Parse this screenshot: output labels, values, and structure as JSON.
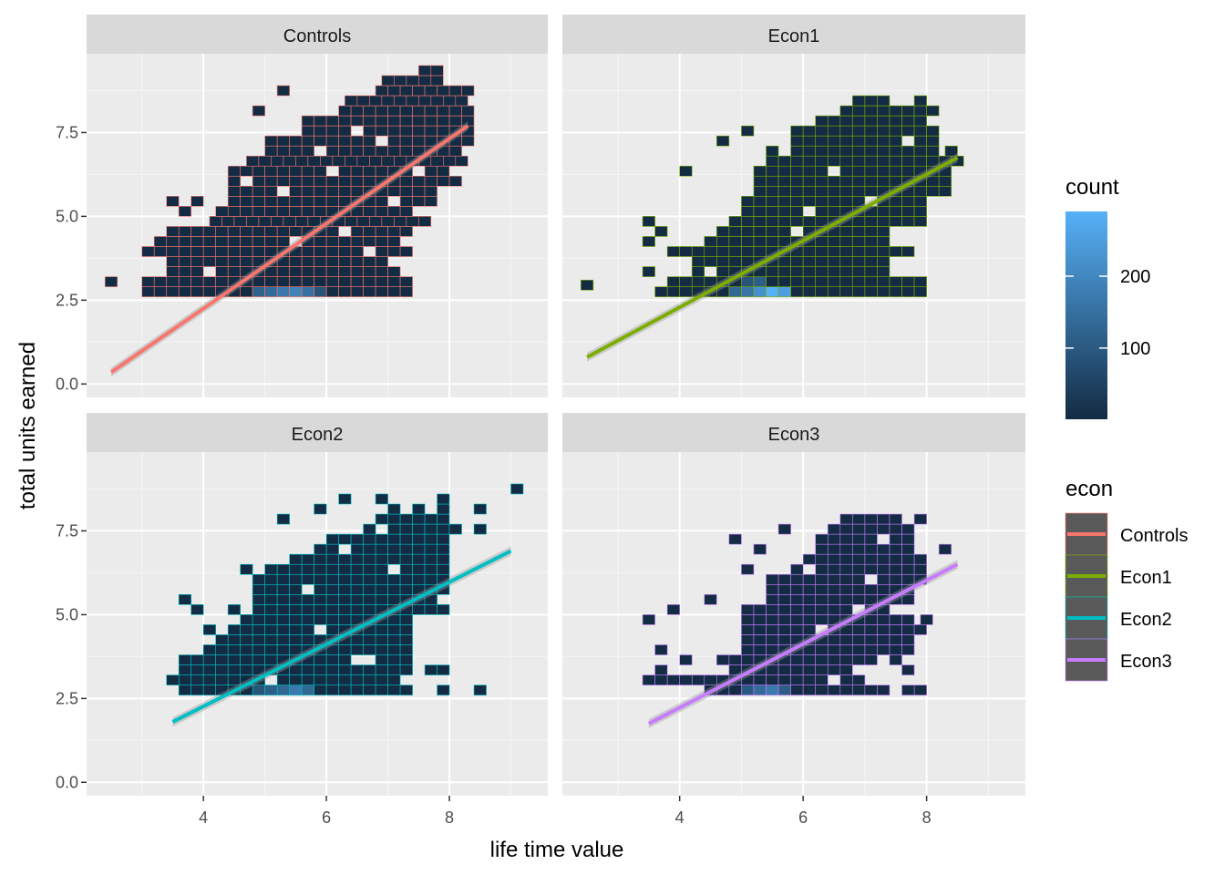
{
  "chart_data": {
    "type": "heatmap",
    "subtype": "faceted 2D-bin heatmap with linear fit lines",
    "xlabel": "life time value",
    "ylabel": "total units earned",
    "xlim": [
      2.1,
      9.6
    ],
    "ylim": [
      -0.4,
      9.85
    ],
    "x_ticks": [
      4,
      6,
      8
    ],
    "x_tick_labels": [
      "4",
      "6",
      "8"
    ],
    "y_ticks": [
      0,
      2.5,
      5,
      7.5
    ],
    "y_tick_labels": [
      "0.0",
      "2.5",
      "5.0",
      "7.5"
    ],
    "x_minor_ticks": [
      3,
      5,
      7,
      9
    ],
    "y_minor_ticks": [
      1.25,
      3.75,
      6.25,
      8.75
    ],
    "grid": true,
    "bin_width_x": 0.2,
    "bin_width_y": 0.3,
    "fill_legend": {
      "title": "count",
      "range": [
        1,
        290
      ],
      "breaks": [
        100,
        200
      ],
      "break_labels": [
        "100",
        "200"
      ],
      "low_color": "#132B43",
      "high_color": "#56B1F7"
    },
    "color_legend": {
      "title": "econ",
      "entries": [
        {
          "label": "Controls",
          "color": "#F8766D"
        },
        {
          "label": "Econ1",
          "color": "#7CAE00"
        },
        {
          "label": "Econ2",
          "color": "#00BFC4"
        },
        {
          "label": "Econ3",
          "color": "#C77CFF"
        }
      ]
    },
    "panels": [
      {
        "label": "Controls",
        "fit": {
          "x": [
            2.5,
            8.3
          ],
          "y": [
            0.35,
            7.7
          ]
        },
        "bin_x_range": [
          2.4,
          8.4
        ],
        "rows": [
          {
            "y": 2.75,
            "x0": 3.1,
            "x1": 7.4
          },
          {
            "y": 3.05,
            "x0": 3.1,
            "x1": 7.4
          },
          {
            "y": 3.35,
            "x0": 3.5,
            "x1": 7.1
          },
          {
            "y": 3.65,
            "x0": 3.5,
            "x1": 7.0
          },
          {
            "y": 3.95,
            "x0": 3.1,
            "x1": 7.4
          },
          {
            "y": 4.25,
            "x0": 3.5,
            "x1": 7.1
          },
          {
            "y": 4.55,
            "x0": 3.5,
            "x1": 7.4
          },
          {
            "y": 4.85,
            "x0": 4.2,
            "x1": 7.7
          },
          {
            "y": 5.15,
            "x0": 4.5,
            "x1": 7.4
          },
          {
            "y": 5.45,
            "x0": 4.5,
            "x1": 7.7
          },
          {
            "y": 5.75,
            "x0": 4.5,
            "x1": 7.7
          },
          {
            "y": 6.05,
            "x0": 4.5,
            "x1": 8.1
          },
          {
            "y": 6.35,
            "x0": 4.5,
            "x1": 8.0
          },
          {
            "y": 6.65,
            "x0": 4.8,
            "x1": 8.2
          },
          {
            "y": 6.95,
            "x0": 5.1,
            "x1": 8.2
          },
          {
            "y": 7.25,
            "x0": 5.1,
            "x1": 8.3
          },
          {
            "y": 7.55,
            "x0": 5.7,
            "x1": 8.3
          },
          {
            "y": 7.85,
            "x0": 5.7,
            "x1": 8.3
          },
          {
            "y": 8.15,
            "x0": 6.3,
            "x1": 8.3
          },
          {
            "y": 8.45,
            "x0": 6.4,
            "x1": 8.3
          },
          {
            "y": 8.75,
            "x0": 6.9,
            "x1": 8.3
          },
          {
            "y": 9.05,
            "x0": 7.0,
            "x1": 7.8
          },
          {
            "y": 9.35,
            "x0": 7.6,
            "x1": 7.9
          }
        ],
        "singles": [
          {
            "x": 2.5,
            "y": 3.05
          },
          {
            "x": 3.3,
            "y": 4.25
          },
          {
            "x": 3.7,
            "y": 5.15
          },
          {
            "x": 3.9,
            "y": 5.45
          },
          {
            "x": 3.5,
            "y": 5.45
          },
          {
            "x": 4.3,
            "y": 5.15
          },
          {
            "x": 4.9,
            "y": 8.15
          },
          {
            "x": 5.3,
            "y": 8.75
          }
        ],
        "holes": [
          {
            "x": 4.1,
            "y": 3.35
          },
          {
            "x": 5.5,
            "y": 4.25
          },
          {
            "x": 6.7,
            "y": 3.95
          },
          {
            "x": 5.3,
            "y": 5.75
          },
          {
            "x": 6.1,
            "y": 6.35
          },
          {
            "x": 7.1,
            "y": 5.45
          },
          {
            "x": 6.9,
            "y": 7.25
          },
          {
            "x": 5.9,
            "y": 6.95
          },
          {
            "x": 6.3,
            "y": 4.55
          },
          {
            "x": 4.7,
            "y": 6.05
          },
          {
            "x": 7.5,
            "y": 6.35
          },
          {
            "x": 6.5,
            "y": 7.55
          }
        ],
        "hot": [
          {
            "x": 4.9,
            "y": 2.75,
            "v": 120
          },
          {
            "x": 5.1,
            "y": 2.75,
            "v": 140
          },
          {
            "x": 5.3,
            "y": 2.75,
            "v": 170
          },
          {
            "x": 5.5,
            "y": 2.75,
            "v": 190
          },
          {
            "x": 5.7,
            "y": 2.75,
            "v": 150
          },
          {
            "x": 5.9,
            "y": 2.75,
            "v": 90
          }
        ]
      },
      {
        "label": "Econ1",
        "fit": {
          "x": [
            2.5,
            8.5
          ],
          "y": [
            0.8,
            6.75
          ]
        },
        "bin_x_range": [
          2.4,
          8.6
        ],
        "rows": [
          {
            "y": 2.75,
            "x0": 3.7,
            "x1": 7.9
          },
          {
            "y": 3.05,
            "x0": 3.9,
            "x1": 7.9
          },
          {
            "y": 3.35,
            "x0": 4.3,
            "x1": 7.4
          },
          {
            "y": 3.65,
            "x0": 4.3,
            "x1": 7.4
          },
          {
            "y": 3.95,
            "x0": 3.9,
            "x1": 7.7
          },
          {
            "y": 4.25,
            "x0": 4.5,
            "x1": 7.4
          },
          {
            "y": 4.55,
            "x0": 4.7,
            "x1": 7.4
          },
          {
            "y": 4.85,
            "x0": 4.9,
            "x1": 8.0
          },
          {
            "y": 5.15,
            "x0": 5.1,
            "x1": 8.0
          },
          {
            "y": 5.45,
            "x0": 5.1,
            "x1": 8.0
          },
          {
            "y": 5.75,
            "x0": 5.3,
            "x1": 8.3
          },
          {
            "y": 6.05,
            "x0": 5.3,
            "x1": 8.3
          },
          {
            "y": 6.35,
            "x0": 5.3,
            "x1": 8.3
          },
          {
            "y": 6.65,
            "x0": 5.5,
            "x1": 8.5
          },
          {
            "y": 6.95,
            "x0": 5.5,
            "x1": 8.1
          },
          {
            "y": 7.25,
            "x0": 5.9,
            "x1": 8.1
          },
          {
            "y": 7.55,
            "x0": 5.9,
            "x1": 8.1
          },
          {
            "y": 7.85,
            "x0": 6.3,
            "x1": 8.0
          },
          {
            "y": 8.15,
            "x0": 6.7,
            "x1": 7.9
          },
          {
            "y": 8.45,
            "x0": 6.9,
            "x1": 7.4
          }
        ],
        "singles": [
          {
            "x": 2.5,
            "y": 2.95
          },
          {
            "x": 3.5,
            "y": 4.85
          },
          {
            "x": 3.5,
            "y": 4.25
          },
          {
            "x": 3.7,
            "y": 4.55
          },
          {
            "x": 3.5,
            "y": 3.35
          },
          {
            "x": 4.1,
            "y": 6.35
          },
          {
            "x": 4.7,
            "y": 7.25
          },
          {
            "x": 5.1,
            "y": 7.55
          },
          {
            "x": 7.9,
            "y": 8.45
          },
          {
            "x": 8.1,
            "y": 8.15
          },
          {
            "x": 8.4,
            "y": 6.95
          },
          {
            "x": 8.3,
            "y": 5.75
          }
        ],
        "holes": [
          {
            "x": 5.9,
            "y": 4.55
          },
          {
            "x": 4.5,
            "y": 3.35
          },
          {
            "x": 6.5,
            "y": 6.35
          },
          {
            "x": 5.7,
            "y": 6.95
          },
          {
            "x": 7.1,
            "y": 5.45
          },
          {
            "x": 6.1,
            "y": 5.15
          },
          {
            "x": 7.7,
            "y": 7.25
          },
          {
            "x": 5.5,
            "y": 7.25
          }
        ],
        "hot": [
          {
            "x": 4.9,
            "y": 2.75,
            "v": 130
          },
          {
            "x": 5.1,
            "y": 2.75,
            "v": 160
          },
          {
            "x": 5.3,
            "y": 2.75,
            "v": 220
          },
          {
            "x": 5.5,
            "y": 2.75,
            "v": 290
          },
          {
            "x": 5.7,
            "y": 2.75,
            "v": 250
          },
          {
            "x": 5.3,
            "y": 3.05,
            "v": 110
          },
          {
            "x": 5.1,
            "y": 3.05,
            "v": 90
          }
        ]
      },
      {
        "label": "Econ2",
        "fit": {
          "x": [
            3.5,
            9.0
          ],
          "y": [
            1.8,
            6.9
          ]
        },
        "bin_x_range": [
          3.4,
          9.2
        ],
        "rows": [
          {
            "y": 2.75,
            "x0": 3.7,
            "x1": 7.4
          },
          {
            "y": 3.05,
            "x0": 3.5,
            "x1": 7.2
          },
          {
            "y": 3.35,
            "x0": 3.7,
            "x1": 7.4
          },
          {
            "y": 3.65,
            "x0": 3.7,
            "x1": 7.4
          },
          {
            "y": 3.95,
            "x0": 4.3,
            "x1": 7.4
          },
          {
            "y": 4.25,
            "x0": 4.3,
            "x1": 7.4
          },
          {
            "y": 4.55,
            "x0": 4.5,
            "x1": 7.4
          },
          {
            "y": 4.85,
            "x0": 4.7,
            "x1": 7.4
          },
          {
            "y": 5.15,
            "x0": 4.9,
            "x1": 7.7
          },
          {
            "y": 5.45,
            "x0": 4.9,
            "x1": 7.7
          },
          {
            "y": 5.75,
            "x0": 4.9,
            "x1": 7.9
          },
          {
            "y": 6.05,
            "x0": 4.9,
            "x1": 7.9
          },
          {
            "y": 6.35,
            "x0": 5.1,
            "x1": 7.9
          },
          {
            "y": 6.65,
            "x0": 5.5,
            "x1": 7.9
          },
          {
            "y": 6.95,
            "x0": 5.9,
            "x1": 7.9
          },
          {
            "y": 7.25,
            "x0": 6.1,
            "x1": 7.9
          },
          {
            "y": 7.55,
            "x0": 6.7,
            "x1": 8.1
          },
          {
            "y": 7.85,
            "x0": 6.9,
            "x1": 7.9
          },
          {
            "y": 8.15,
            "x0": 7.9,
            "x1": 8.0
          }
        ],
        "singles": [
          {
            "x": 3.7,
            "y": 5.45
          },
          {
            "x": 3.9,
            "y": 5.15
          },
          {
            "x": 4.1,
            "y": 4.55
          },
          {
            "x": 4.1,
            "y": 3.95
          },
          {
            "x": 4.5,
            "y": 5.15
          },
          {
            "x": 4.7,
            "y": 6.35
          },
          {
            "x": 5.3,
            "y": 7.85
          },
          {
            "x": 5.9,
            "y": 8.15
          },
          {
            "x": 6.3,
            "y": 8.45
          },
          {
            "x": 6.9,
            "y": 8.45
          },
          {
            "x": 7.1,
            "y": 8.15
          },
          {
            "x": 7.5,
            "y": 8.15
          },
          {
            "x": 8.5,
            "y": 8.15
          },
          {
            "x": 8.5,
            "y": 7.55
          },
          {
            "x": 7.9,
            "y": 8.45
          },
          {
            "x": 7.7,
            "y": 3.35
          },
          {
            "x": 8.5,
            "y": 2.75
          },
          {
            "x": 7.9,
            "y": 2.75
          },
          {
            "x": 9.1,
            "y": 8.75
          },
          {
            "x": 7.3,
            "y": 2.75
          },
          {
            "x": 7.9,
            "y": 3.35
          },
          {
            "x": 7.9,
            "y": 5.15
          }
        ],
        "holes": [
          {
            "x": 5.1,
            "y": 3.05
          },
          {
            "x": 6.7,
            "y": 3.65
          },
          {
            "x": 6.5,
            "y": 3.65
          },
          {
            "x": 5.7,
            "y": 5.75
          },
          {
            "x": 6.3,
            "y": 6.95
          },
          {
            "x": 7.1,
            "y": 6.35
          },
          {
            "x": 5.9,
            "y": 4.55
          },
          {
            "x": 6.9,
            "y": 7.55
          }
        ],
        "hot": [
          {
            "x": 5.1,
            "y": 2.75,
            "v": 110
          },
          {
            "x": 5.3,
            "y": 2.75,
            "v": 130
          },
          {
            "x": 5.5,
            "y": 2.75,
            "v": 170
          },
          {
            "x": 5.7,
            "y": 2.75,
            "v": 130
          },
          {
            "x": 4.9,
            "y": 2.75,
            "v": 90
          }
        ]
      },
      {
        "label": "Econ3",
        "fit": {
          "x": [
            3.5,
            8.5
          ],
          "y": [
            1.75,
            6.5
          ]
        },
        "bin_x_range": [
          3.4,
          8.6
        ],
        "rows": [
          {
            "y": 2.75,
            "x0": 4.5,
            "x1": 7.4
          },
          {
            "y": 3.05,
            "x0": 3.5,
            "x1": 7.0
          },
          {
            "y": 3.35,
            "x0": 4.9,
            "x1": 6.7
          },
          {
            "y": 3.65,
            "x0": 4.7,
            "x1": 7.2
          },
          {
            "y": 3.95,
            "x0": 5.1,
            "x1": 7.7
          },
          {
            "y": 4.25,
            "x0": 5.1,
            "x1": 7.7
          },
          {
            "y": 4.55,
            "x0": 5.1,
            "x1": 7.7
          },
          {
            "y": 4.85,
            "x0": 5.1,
            "x1": 7.7
          },
          {
            "y": 5.15,
            "x0": 5.1,
            "x1": 7.4
          },
          {
            "y": 5.45,
            "x0": 5.5,
            "x1": 7.7
          },
          {
            "y": 5.75,
            "x0": 5.5,
            "x1": 7.7
          },
          {
            "y": 6.05,
            "x0": 5.5,
            "x1": 7.9
          },
          {
            "y": 6.35,
            "x0": 5.9,
            "x1": 7.9
          },
          {
            "y": 6.65,
            "x0": 6.1,
            "x1": 7.9
          },
          {
            "y": 6.95,
            "x0": 6.3,
            "x1": 7.7
          },
          {
            "y": 7.25,
            "x0": 6.3,
            "x1": 7.7
          },
          {
            "y": 7.55,
            "x0": 6.5,
            "x1": 7.7
          },
          {
            "y": 7.85,
            "x0": 6.7,
            "x1": 7.5
          }
        ],
        "singles": [
          {
            "x": 3.7,
            "y": 3.35
          },
          {
            "x": 3.7,
            "y": 3.95
          },
          {
            "x": 4.1,
            "y": 3.65
          },
          {
            "x": 3.9,
            "y": 5.15
          },
          {
            "x": 3.5,
            "y": 4.85
          },
          {
            "x": 4.5,
            "y": 5.45
          },
          {
            "x": 5.1,
            "y": 6.35
          },
          {
            "x": 5.3,
            "y": 6.95
          },
          {
            "x": 5.7,
            "y": 7.55
          },
          {
            "x": 7.9,
            "y": 7.85
          },
          {
            "x": 8.3,
            "y": 6.95
          },
          {
            "x": 8.0,
            "y": 4.85
          },
          {
            "x": 7.9,
            "y": 4.55
          },
          {
            "x": 7.5,
            "y": 3.65
          },
          {
            "x": 7.7,
            "y": 3.35
          },
          {
            "x": 7.9,
            "y": 2.75
          },
          {
            "x": 7.7,
            "y": 2.75
          },
          {
            "x": 4.9,
            "y": 7.25
          }
        ],
        "holes": [
          {
            "x": 6.5,
            "y": 3.05
          },
          {
            "x": 6.9,
            "y": 5.15
          },
          {
            "x": 7.1,
            "y": 6.05
          },
          {
            "x": 6.1,
            "y": 6.35
          },
          {
            "x": 7.3,
            "y": 7.25
          },
          {
            "x": 6.3,
            "y": 4.55
          }
        ],
        "hot": [
          {
            "x": 5.3,
            "y": 2.75,
            "v": 140
          },
          {
            "x": 5.5,
            "y": 2.75,
            "v": 170
          },
          {
            "x": 5.1,
            "y": 2.75,
            "v": 100
          },
          {
            "x": 5.7,
            "y": 2.75,
            "v": 110
          }
        ]
      }
    ]
  }
}
